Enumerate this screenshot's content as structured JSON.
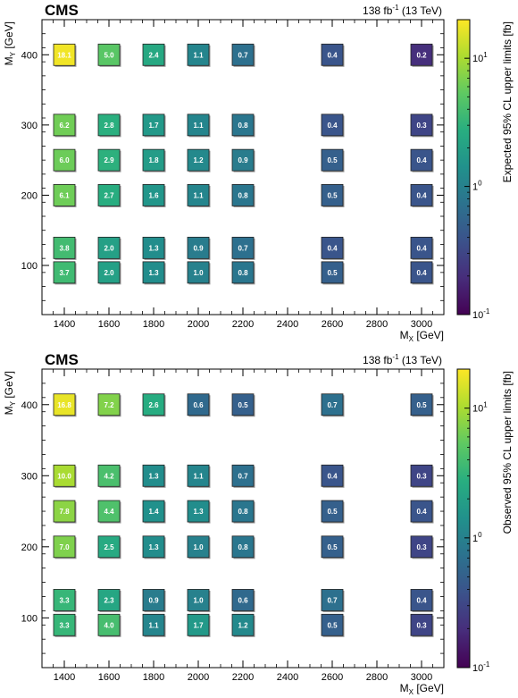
{
  "chart_data": [
    {
      "type": "heatmap",
      "experiment": "CMS",
      "lumi": "138 fb",
      "lumi_exp": "-1",
      "energy": "(13 TeV)",
      "xlabel": "M",
      "xlabel_sub": "X",
      "xlabel_unit": "[GeV]",
      "ylabel": "M",
      "ylabel_sub": "Y",
      "ylabel_unit": "[GeV]",
      "xlim": [
        1300,
        3100
      ],
      "ylim": [
        30,
        450
      ],
      "xticks": [
        "1400",
        "1600",
        "1800",
        "2000",
        "2200",
        "2400",
        "2600",
        "2800",
        "3000"
      ],
      "yticks": [
        "100",
        "200",
        "300",
        "400"
      ],
      "colorbar": {
        "label": "Expected 95% CL upper limits [fb]",
        "scale": "log",
        "range": [
          0.1,
          20
        ],
        "ticks": [
          "10",
          "1",
          "10"
        ],
        "tick_exps": [
          "-1",
          "0",
          "1"
        ],
        "tick_values": [
          0.1,
          1,
          10
        ]
      },
      "points": [
        {
          "mx": 1400,
          "my": 400,
          "value": 18.1,
          "label": "18.1"
        },
        {
          "mx": 1600,
          "my": 400,
          "value": 5.0,
          "label": "5.0"
        },
        {
          "mx": 1800,
          "my": 400,
          "value": 2.4,
          "label": "2.4"
        },
        {
          "mx": 2000,
          "my": 400,
          "value": 1.1,
          "label": "1.1"
        },
        {
          "mx": 2200,
          "my": 400,
          "value": 0.7,
          "label": "0.7"
        },
        {
          "mx": 2600,
          "my": 400,
          "value": 0.4,
          "label": "0.4"
        },
        {
          "mx": 3000,
          "my": 400,
          "value": 0.2,
          "label": "0.2"
        },
        {
          "mx": 1400,
          "my": 300,
          "value": 6.2,
          "label": "6.2"
        },
        {
          "mx": 1600,
          "my": 300,
          "value": 2.8,
          "label": "2.8"
        },
        {
          "mx": 1800,
          "my": 300,
          "value": 1.7,
          "label": "1.7"
        },
        {
          "mx": 2000,
          "my": 300,
          "value": 1.1,
          "label": "1.1"
        },
        {
          "mx": 2200,
          "my": 300,
          "value": 0.8,
          "label": "0.8"
        },
        {
          "mx": 2600,
          "my": 300,
          "value": 0.4,
          "label": "0.4"
        },
        {
          "mx": 3000,
          "my": 300,
          "value": 0.3,
          "label": "0.3"
        },
        {
          "mx": 1400,
          "my": 250,
          "value": 6.0,
          "label": "6.0"
        },
        {
          "mx": 1600,
          "my": 250,
          "value": 2.9,
          "label": "2.9"
        },
        {
          "mx": 1800,
          "my": 250,
          "value": 1.8,
          "label": "1.8"
        },
        {
          "mx": 2000,
          "my": 250,
          "value": 1.2,
          "label": "1.2"
        },
        {
          "mx": 2200,
          "my": 250,
          "value": 0.9,
          "label": "0.9"
        },
        {
          "mx": 2600,
          "my": 250,
          "value": 0.5,
          "label": "0.5"
        },
        {
          "mx": 3000,
          "my": 250,
          "value": 0.4,
          "label": "0.4"
        },
        {
          "mx": 1400,
          "my": 200,
          "value": 6.1,
          "label": "6.1"
        },
        {
          "mx": 1600,
          "my": 200,
          "value": 2.7,
          "label": "2.7"
        },
        {
          "mx": 1800,
          "my": 200,
          "value": 1.6,
          "label": "1.6"
        },
        {
          "mx": 2000,
          "my": 200,
          "value": 1.1,
          "label": "1.1"
        },
        {
          "mx": 2200,
          "my": 200,
          "value": 0.8,
          "label": "0.8"
        },
        {
          "mx": 2600,
          "my": 200,
          "value": 0.5,
          "label": "0.5"
        },
        {
          "mx": 3000,
          "my": 200,
          "value": 0.4,
          "label": "0.4"
        },
        {
          "mx": 1400,
          "my": 125,
          "value": 3.8,
          "label": "3.8"
        },
        {
          "mx": 1600,
          "my": 125,
          "value": 2.0,
          "label": "2.0"
        },
        {
          "mx": 1800,
          "my": 125,
          "value": 1.3,
          "label": "1.3"
        },
        {
          "mx": 2000,
          "my": 125,
          "value": 0.9,
          "label": "0.9"
        },
        {
          "mx": 2200,
          "my": 125,
          "value": 0.7,
          "label": "0.7"
        },
        {
          "mx": 2600,
          "my": 125,
          "value": 0.4,
          "label": "0.4"
        },
        {
          "mx": 3000,
          "my": 125,
          "value": 0.4,
          "label": "0.4"
        },
        {
          "mx": 1400,
          "my": 90,
          "value": 3.7,
          "label": "3.7"
        },
        {
          "mx": 1600,
          "my": 90,
          "value": 2.0,
          "label": "2.0"
        },
        {
          "mx": 1800,
          "my": 90,
          "value": 1.3,
          "label": "1.3"
        },
        {
          "mx": 2000,
          "my": 90,
          "value": 1.0,
          "label": "1.0"
        },
        {
          "mx": 2200,
          "my": 90,
          "value": 0.8,
          "label": "0.8"
        },
        {
          "mx": 2600,
          "my": 90,
          "value": 0.5,
          "label": "0.5"
        },
        {
          "mx": 3000,
          "my": 90,
          "value": 0.4,
          "label": "0.4"
        }
      ]
    },
    {
      "type": "heatmap",
      "experiment": "CMS",
      "lumi": "138 fb",
      "lumi_exp": "-1",
      "energy": "(13 TeV)",
      "xlabel": "M",
      "xlabel_sub": "X",
      "xlabel_unit": "[GeV]",
      "ylabel": "M",
      "ylabel_sub": "Y",
      "ylabel_unit": "[GeV]",
      "xlim": [
        1300,
        3100
      ],
      "ylim": [
        30,
        450
      ],
      "xticks": [
        "1400",
        "1600",
        "1800",
        "2000",
        "2200",
        "2400",
        "2600",
        "2800",
        "3000"
      ],
      "yticks": [
        "100",
        "200",
        "300",
        "400"
      ],
      "colorbar": {
        "label": "Observed 95% CL upper limits [fb]",
        "scale": "log",
        "range": [
          0.1,
          20
        ],
        "ticks": [
          "10",
          "1",
          "10"
        ],
        "tick_exps": [
          "-1",
          "0",
          "1"
        ],
        "tick_values": [
          0.1,
          1,
          10
        ]
      },
      "points": [
        {
          "mx": 1400,
          "my": 400,
          "value": 16.8,
          "label": "16.8"
        },
        {
          "mx": 1600,
          "my": 400,
          "value": 7.2,
          "label": "7.2"
        },
        {
          "mx": 1800,
          "my": 400,
          "value": 2.6,
          "label": "2.6"
        },
        {
          "mx": 2000,
          "my": 400,
          "value": 0.6,
          "label": "0.6"
        },
        {
          "mx": 2200,
          "my": 400,
          "value": 0.5,
          "label": "0.5"
        },
        {
          "mx": 2600,
          "my": 400,
          "value": 0.7,
          "label": "0.7"
        },
        {
          "mx": 3000,
          "my": 400,
          "value": 0.5,
          "label": "0.5"
        },
        {
          "mx": 1400,
          "my": 300,
          "value": 10.0,
          "label": "10.0"
        },
        {
          "mx": 1600,
          "my": 300,
          "value": 4.2,
          "label": "4.2"
        },
        {
          "mx": 1800,
          "my": 300,
          "value": 1.3,
          "label": "1.3"
        },
        {
          "mx": 2000,
          "my": 300,
          "value": 1.1,
          "label": "1.1"
        },
        {
          "mx": 2200,
          "my": 300,
          "value": 0.7,
          "label": "0.7"
        },
        {
          "mx": 2600,
          "my": 300,
          "value": 0.4,
          "label": "0.4"
        },
        {
          "mx": 3000,
          "my": 300,
          "value": 0.3,
          "label": "0.3"
        },
        {
          "mx": 1400,
          "my": 250,
          "value": 7.8,
          "label": "7.8"
        },
        {
          "mx": 1600,
          "my": 250,
          "value": 4.4,
          "label": "4.4"
        },
        {
          "mx": 1800,
          "my": 250,
          "value": 1.4,
          "label": "1.4"
        },
        {
          "mx": 2000,
          "my": 250,
          "value": 1.3,
          "label": "1.3"
        },
        {
          "mx": 2200,
          "my": 250,
          "value": 0.8,
          "label": "0.8"
        },
        {
          "mx": 2600,
          "my": 250,
          "value": 0.5,
          "label": "0.5"
        },
        {
          "mx": 3000,
          "my": 250,
          "value": 0.4,
          "label": "0.4"
        },
        {
          "mx": 1400,
          "my": 200,
          "value": 7.0,
          "label": "7.0"
        },
        {
          "mx": 1600,
          "my": 200,
          "value": 2.5,
          "label": "2.5"
        },
        {
          "mx": 1800,
          "my": 200,
          "value": 1.3,
          "label": "1.3"
        },
        {
          "mx": 2000,
          "my": 200,
          "value": 1.0,
          "label": "1.0"
        },
        {
          "mx": 2200,
          "my": 200,
          "value": 0.8,
          "label": "0.8"
        },
        {
          "mx": 2600,
          "my": 200,
          "value": 0.5,
          "label": "0.5"
        },
        {
          "mx": 3000,
          "my": 200,
          "value": 0.3,
          "label": "0.3"
        },
        {
          "mx": 1400,
          "my": 125,
          "value": 3.3,
          "label": "3.3"
        },
        {
          "mx": 1600,
          "my": 125,
          "value": 2.3,
          "label": "2.3"
        },
        {
          "mx": 1800,
          "my": 125,
          "value": 0.9,
          "label": "0.9"
        },
        {
          "mx": 2000,
          "my": 125,
          "value": 1.0,
          "label": "1.0"
        },
        {
          "mx": 2200,
          "my": 125,
          "value": 0.6,
          "label": "0.6"
        },
        {
          "mx": 2600,
          "my": 125,
          "value": 0.7,
          "label": "0.7"
        },
        {
          "mx": 3000,
          "my": 125,
          "value": 0.4,
          "label": "0.4"
        },
        {
          "mx": 1400,
          "my": 90,
          "value": 3.3,
          "label": "3.3"
        },
        {
          "mx": 1600,
          "my": 90,
          "value": 4.0,
          "label": "4.0"
        },
        {
          "mx": 1800,
          "my": 90,
          "value": 1.1,
          "label": "1.1"
        },
        {
          "mx": 2000,
          "my": 90,
          "value": 1.7,
          "label": "1.7"
        },
        {
          "mx": 2200,
          "my": 90,
          "value": 1.2,
          "label": "1.2"
        },
        {
          "mx": 2600,
          "my": 90,
          "value": 0.5,
          "label": "0.5"
        },
        {
          "mx": 3000,
          "my": 90,
          "value": 0.3,
          "label": "0.3"
        }
      ]
    }
  ]
}
